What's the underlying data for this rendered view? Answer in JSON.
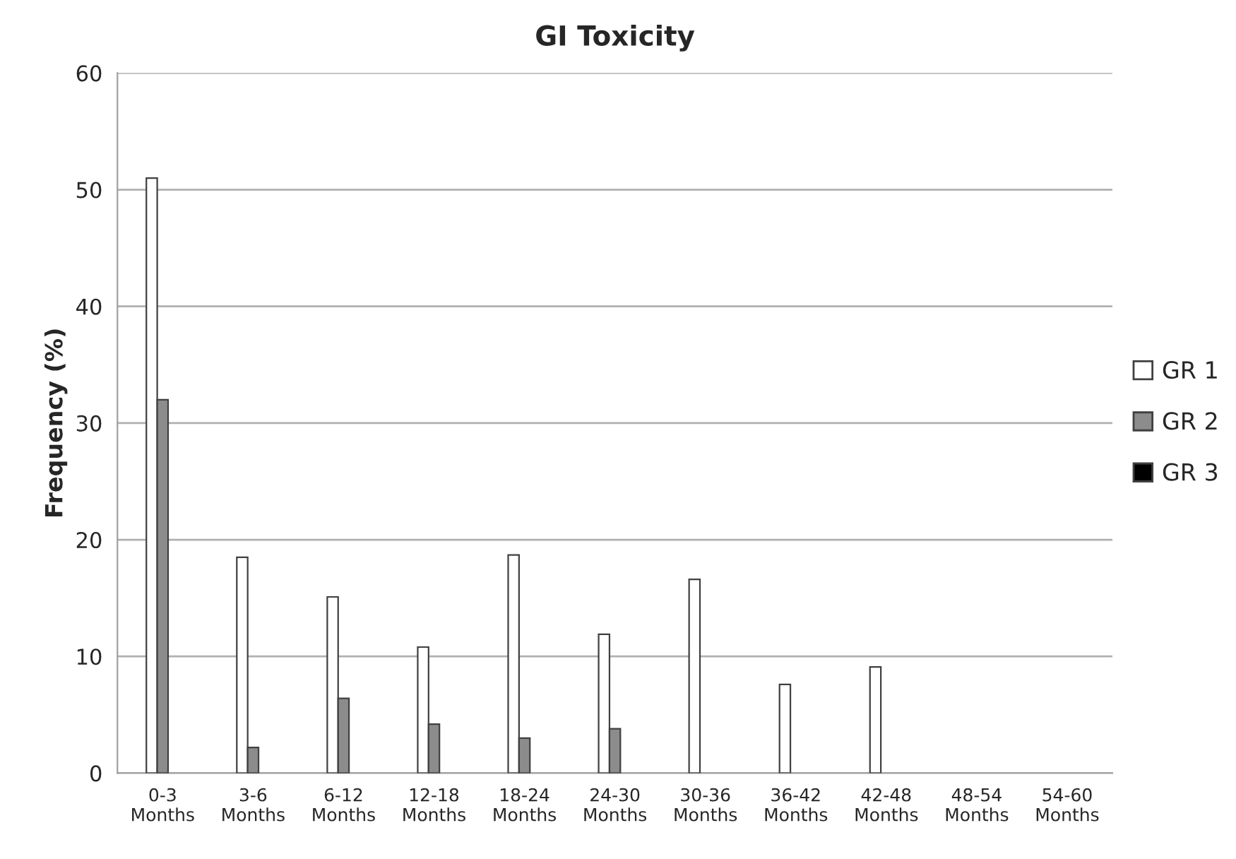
{
  "chart_data": {
    "type": "bar",
    "title": "GI Toxicity",
    "ylabel": "Frequency (%)",
    "categories": [
      "0-3\nMonths",
      "3-6\nMonths",
      "6-12\nMonths",
      "12-18\nMonths",
      "18-24\nMonths",
      "24-30\nMonths",
      "30-36\nMonths",
      "36-42\nMonths",
      "42-48\nMonths",
      "48-54\nMonths",
      "54-60\nMonths"
    ],
    "series": [
      {
        "name": "GR 1",
        "color": "#ffffff",
        "values": [
          51,
          18.5,
          15.1,
          10.8,
          18.7,
          11.9,
          16.6,
          7.6,
          9.1,
          0,
          0
        ]
      },
      {
        "name": "GR 2",
        "color": "#8c8c8c",
        "values": [
          32,
          2.2,
          6.4,
          4.2,
          3.0,
          3.8,
          0,
          0,
          0,
          0,
          0
        ]
      },
      {
        "name": "GR 3",
        "color": "#000000",
        "values": [
          0,
          0,
          0,
          0,
          0,
          0,
          0,
          0,
          0,
          0,
          0
        ]
      }
    ],
    "ylim": [
      0,
      60
    ],
    "yticks": [
      0,
      10,
      20,
      30,
      40,
      50,
      60
    ],
    "grid": "y",
    "legend": "right"
  }
}
